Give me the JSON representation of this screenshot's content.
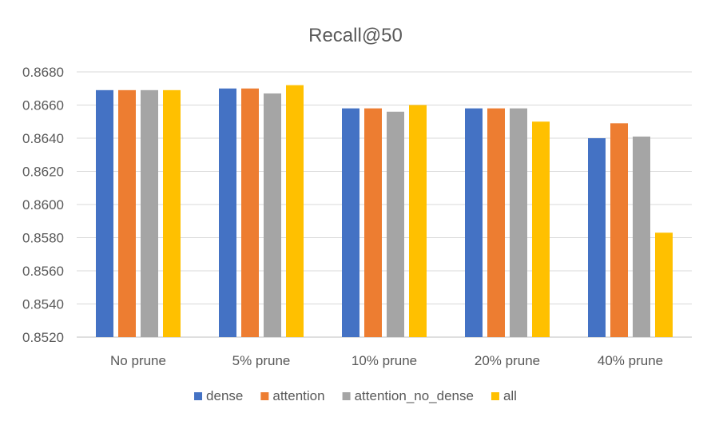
{
  "chart_data": {
    "type": "bar",
    "title": "Recall@50",
    "xlabel": "",
    "ylabel": "",
    "categories": [
      "No prune",
      "5% prune",
      "10% prune",
      "20% prune",
      "40% prune"
    ],
    "y_ticks": [
      "0.8520",
      "0.8540",
      "0.8560",
      "0.8580",
      "0.8600",
      "0.8620",
      "0.8640",
      "0.8660",
      "0.8680"
    ],
    "ylim": [
      0.852,
      0.868
    ],
    "grid": true,
    "legend_position": "bottom",
    "series": [
      {
        "name": "dense",
        "color": "#4472C4",
        "values": [
          0.8669,
          0.867,
          0.8658,
          0.8658,
          0.864
        ]
      },
      {
        "name": "attention",
        "color": "#ED7D31",
        "values": [
          0.8669,
          0.867,
          0.8658,
          0.8658,
          0.8649
        ]
      },
      {
        "name": "attention_no_dense",
        "color": "#A5A5A5",
        "values": [
          0.8669,
          0.8667,
          0.8656,
          0.8658,
          0.8641
        ]
      },
      {
        "name": "all",
        "color": "#FFC000",
        "values": [
          0.8669,
          0.8672,
          0.866,
          0.865,
          0.8583
        ]
      }
    ]
  }
}
